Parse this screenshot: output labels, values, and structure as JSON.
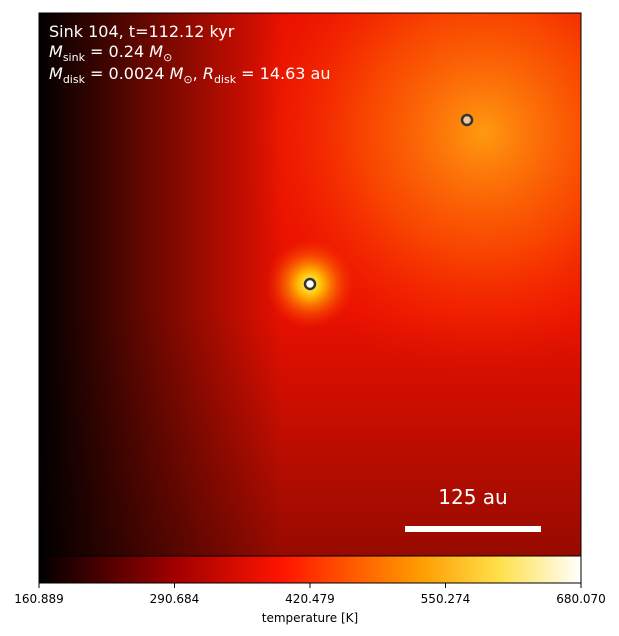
{
  "chart_data": {
    "type": "image",
    "annotations": [
      [
        "Sink 104, t=112.12 kyr"
      ],
      [
        "M",
        "sink",
        " = 0.24 ",
        "M",
        "⊙"
      ],
      [
        "M",
        "disk",
        " = 0.0024 ",
        "M",
        "⊙",
        ", ",
        "R",
        "disk",
        " = 14.63 au"
      ]
    ],
    "scale_bar_label": "125 au",
    "colorbar": {
      "label": "temperature [K]",
      "colormap": "gist_heat",
      "clim": [
        160.889,
        680.07
      ],
      "ticks": [
        160.889,
        290.684,
        420.479,
        550.274,
        {
          "value": 680.07,
          "label": "680.070"
        }
      ]
    }
  }
}
